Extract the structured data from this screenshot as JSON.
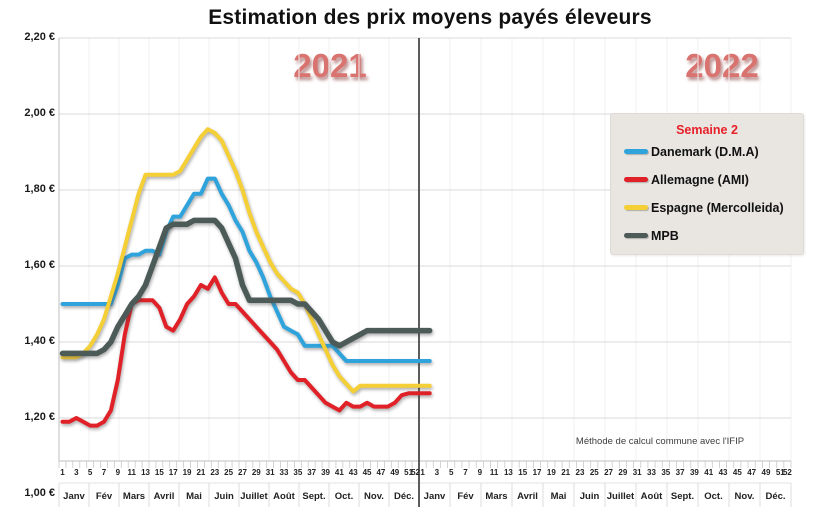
{
  "title": "Estimation des prix moyens payés éleveurs",
  "footnote": "Méthode de calcul commune avec l'IFIP",
  "legend": {
    "header": "Semaine 2",
    "header_color": "#e8202a",
    "items": [
      {
        "label": "Danemark (D.M.A)",
        "color": "#2fa3dc"
      },
      {
        "label": "Allemagne (AMI)",
        "color": "#e02127"
      },
      {
        "label": "Espagne (Mercolleida)",
        "color": "#f5cf36"
      },
      {
        "label": "MPB",
        "color": "#4d5b58"
      }
    ]
  },
  "chart_data": {
    "type": "line",
    "title": "Estimation des prix moyens payés éleveurs",
    "x_unit": "semaine",
    "years": [
      "2021",
      "2022"
    ],
    "weeks_per_year": 52,
    "weeks_shown_2022": 2,
    "current_week_note": "Semaine 2",
    "ylim": [
      1.0,
      2.2
    ],
    "currency": "€",
    "grid": "horizontal",
    "legend_position": "right",
    "ytick_labels": [
      "2,20 €",
      "2,00 €",
      "1,80 €",
      "1,60 €",
      "1,40 €",
      "1,20 €",
      "1,00 €"
    ],
    "ytick_values": [
      2.2,
      2.0,
      1.8,
      1.6,
      1.4,
      1.2,
      1.0
    ],
    "week_tick_labels": [
      "1",
      "3",
      "5",
      "7",
      "9",
      "11",
      "13",
      "15",
      "17",
      "19",
      "21",
      "23",
      "25",
      "27",
      "29",
      "31",
      "33",
      "35",
      "37",
      "39",
      "41",
      "43",
      "45",
      "47",
      "49",
      "51",
      "52"
    ],
    "month_labels": [
      "Janv",
      "Fév",
      "Mars",
      "Avril",
      "Mai",
      "Juin",
      "Juillet",
      "Août",
      "Sept.",
      "Oct.",
      "Nov.",
      "Déc."
    ],
    "series": [
      {
        "name": "Danemark (D.M.A)",
        "color": "#2fa3dc",
        "width": 4,
        "values": [
          1.5,
          1.5,
          1.5,
          1.5,
          1.5,
          1.5,
          1.5,
          1.5,
          1.55,
          1.62,
          1.63,
          1.63,
          1.64,
          1.64,
          1.63,
          1.69,
          1.73,
          1.73,
          1.76,
          1.79,
          1.79,
          1.83,
          1.83,
          1.79,
          1.76,
          1.72,
          1.69,
          1.64,
          1.61,
          1.57,
          1.52,
          1.48,
          1.44,
          1.43,
          1.42,
          1.39,
          1.39,
          1.39,
          1.39,
          1.39,
          1.37,
          1.35,
          1.35,
          1.35,
          1.35,
          1.35,
          1.35,
          1.35,
          1.35,
          1.35,
          1.35,
          1.35,
          1.35,
          1.35
        ]
      },
      {
        "name": "Allemagne (AMI)",
        "color": "#e02127",
        "width": 4,
        "values": [
          1.19,
          1.19,
          1.2,
          1.19,
          1.18,
          1.18,
          1.19,
          1.22,
          1.3,
          1.42,
          1.5,
          1.51,
          1.51,
          1.51,
          1.49,
          1.44,
          1.43,
          1.46,
          1.5,
          1.52,
          1.55,
          1.54,
          1.57,
          1.53,
          1.5,
          1.5,
          1.48,
          1.46,
          1.44,
          1.42,
          1.4,
          1.38,
          1.35,
          1.32,
          1.3,
          1.3,
          1.28,
          1.26,
          1.24,
          1.23,
          1.22,
          1.24,
          1.23,
          1.23,
          1.24,
          1.23,
          1.23,
          1.23,
          1.24,
          1.26,
          1.265,
          1.265,
          1.265,
          1.265
        ]
      },
      {
        "name": "Espagne (Mercolleida)",
        "color": "#f5cf36",
        "width": 4,
        "values": [
          1.36,
          1.36,
          1.36,
          1.37,
          1.39,
          1.42,
          1.46,
          1.52,
          1.58,
          1.65,
          1.72,
          1.79,
          1.84,
          1.84,
          1.84,
          1.84,
          1.84,
          1.85,
          1.88,
          1.91,
          1.94,
          1.96,
          1.95,
          1.93,
          1.89,
          1.85,
          1.8,
          1.74,
          1.69,
          1.65,
          1.61,
          1.58,
          1.56,
          1.54,
          1.53,
          1.5,
          1.46,
          1.42,
          1.38,
          1.34,
          1.31,
          1.29,
          1.27,
          1.285,
          1.285,
          1.285,
          1.285,
          1.285,
          1.285,
          1.285,
          1.285,
          1.285,
          1.285,
          1.285
        ]
      },
      {
        "name": "MPB",
        "color": "#4d5b58",
        "width": 5.5,
        "values": [
          1.37,
          1.37,
          1.37,
          1.37,
          1.37,
          1.37,
          1.38,
          1.4,
          1.44,
          1.47,
          1.5,
          1.52,
          1.55,
          1.6,
          1.65,
          1.7,
          1.71,
          1.71,
          1.71,
          1.72,
          1.72,
          1.72,
          1.72,
          1.7,
          1.66,
          1.62,
          1.55,
          1.51,
          1.51,
          1.51,
          1.51,
          1.51,
          1.51,
          1.51,
          1.5,
          1.5,
          1.48,
          1.46,
          1.43,
          1.4,
          1.39,
          1.4,
          1.41,
          1.42,
          1.43,
          1.43,
          1.43,
          1.43,
          1.43,
          1.43,
          1.43,
          1.43,
          1.43,
          1.43
        ]
      }
    ]
  }
}
